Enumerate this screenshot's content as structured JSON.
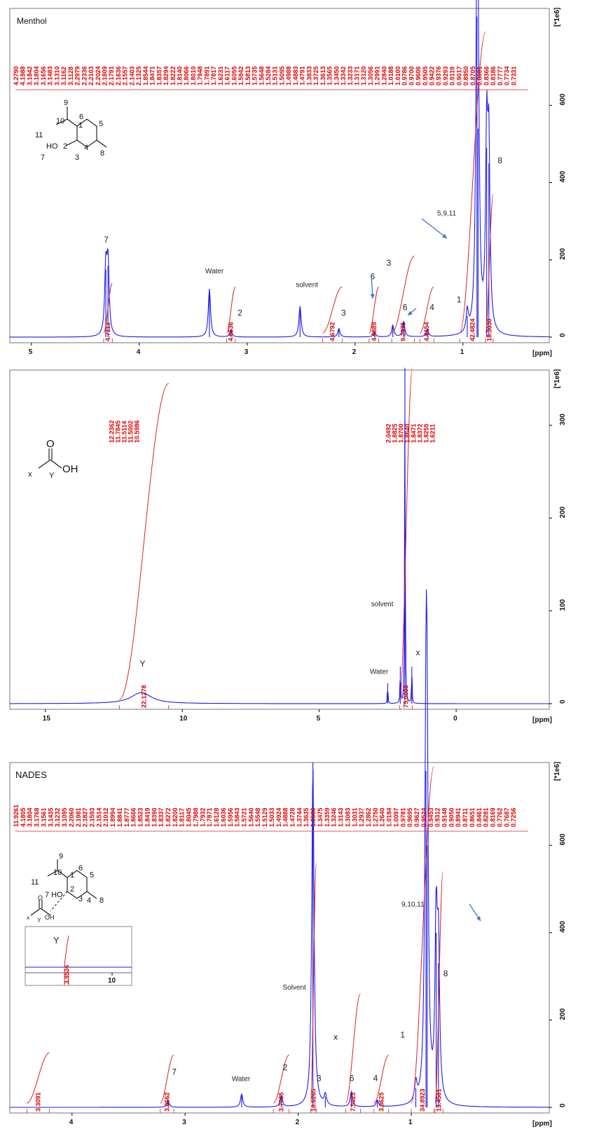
{
  "colors": {
    "spectrum": "#1c1cf0",
    "integral": "#e02020",
    "arrow": "#3a78c8"
  },
  "chart_data": [
    {
      "type": "line",
      "title": "Menthol",
      "xlabel": "[ppm]",
      "ylabel": "[*1e6]",
      "xlim": [
        5.2,
        0.2
      ],
      "ylim": [
        -30,
        840
      ],
      "x_ticks": [
        5,
        4,
        3,
        2,
        1
      ],
      "y_ticks": [
        0,
        200,
        400,
        600
      ],
      "peak_list": [
        "4.2790",
        "4.1988",
        "3.1842",
        "3.1804",
        "3.1656",
        "3.1483",
        "3.1310",
        "3.1162",
        "3.1128",
        "2.2979",
        "2.2336",
        "2.2103",
        "2.2024",
        "2.1809",
        "2.1791",
        "2.1636",
        "2.1557",
        "2.1403",
        "2.1325",
        "1.8544",
        "1.8471",
        "1.8357",
        "1.8294",
        "1.8222",
        "1.8140",
        "1.8066",
        "1.8010",
        "1.7948",
        "1.7891",
        "1.7817",
        "1.6231",
        "1.6117",
        "1.6055",
        "1.5942",
        "1.5813",
        "1.5735",
        "1.5648",
        "1.5284",
        "1.5131",
        "1.5095",
        "1.4988",
        "1.4883",
        "1.4791",
        "1.3833",
        "1.3725",
        "1.3613",
        "1.3565",
        "1.3450",
        "1.3342",
        "1.3233",
        "1.3171",
        "1.3120",
        "1.3056",
        "1.2991",
        "1.2840",
        "1.0188",
        "1.0100",
        "0.9786",
        "0.9700",
        "0.9606",
        "0.9505",
        "0.9422",
        "0.9376",
        "0.9293",
        "0.9119",
        "0.9017",
        "0.8950",
        "0.8705",
        "0.8601",
        "0.8366",
        "0.8186",
        "0.7777",
        "0.7734",
        "0.7331"
      ],
      "peaks": [
        {
          "x": 4.31,
          "y": 175
        },
        {
          "x": 4.29,
          "y": 185
        },
        {
          "x": 3.35,
          "y": 125
        },
        {
          "x": 3.15,
          "y": 18
        },
        {
          "x": 2.51,
          "y": 80
        },
        {
          "x": 2.15,
          "y": 22
        },
        {
          "x": 1.82,
          "y": 14
        },
        {
          "x": 1.65,
          "y": 30
        },
        {
          "x": 1.55,
          "y": 40
        },
        {
          "x": 1.33,
          "y": 20
        },
        {
          "x": 0.96,
          "y": 55
        },
        {
          "x": 0.87,
          "y": 830
        },
        {
          "x": 0.86,
          "y": 540
        },
        {
          "x": 0.78,
          "y": 490
        },
        {
          "x": 0.76,
          "y": 450
        }
      ],
      "integrals": [
        {
          "from": 4.33,
          "to": 4.25,
          "value": "4.7113",
          "height": 140
        },
        {
          "from": 3.19,
          "to": 3.11,
          "value": "4.6536",
          "height": 130
        },
        {
          "from": 2.3,
          "to": 2.12,
          "value": "4.6792",
          "height": 130
        },
        {
          "from": 1.87,
          "to": 1.78,
          "value": "4.6889",
          "height": 130
        },
        {
          "from": 1.66,
          "to": 1.45,
          "value": "9.2975",
          "height": 210
        },
        {
          "from": 1.4,
          "to": 1.27,
          "value": "4.8154",
          "height": 130
        },
        {
          "from": 1.03,
          "to": 0.79,
          "value": "42.4824",
          "height": 790
        },
        {
          "from": 0.79,
          "to": 0.72,
          "value": "18.3030",
          "height": 370
        }
      ],
      "annotations": [
        {
          "text": "7",
          "x": 4.29,
          "y": 245
        },
        {
          "text": "Water",
          "x": 3.35,
          "y": 165
        },
        {
          "text": "2",
          "x": 3.05,
          "y": 55
        },
        {
          "text": "solvent",
          "x": 2.51,
          "y": 130
        },
        {
          "text": "3",
          "x": 2.09,
          "y": 55
        },
        {
          "text": "6",
          "x": 1.82,
          "y": 150
        },
        {
          "text": "3",
          "x": 1.67,
          "y": 185
        },
        {
          "text": "6",
          "x": 1.52,
          "y": 70
        },
        {
          "text": "4",
          "x": 1.27,
          "y": 70
        },
        {
          "text": "1",
          "x": 1.02,
          "y": 90
        },
        {
          "text": "5,9,11",
          "x": 1.2,
          "y": 315
        },
        {
          "text": "8",
          "x": 0.64,
          "y": 450
        }
      ]
    },
    {
      "type": "line",
      "title": "",
      "xlabel": "[ppm]",
      "ylabel": "[*1e6]",
      "xlim": [
        16.3,
        -3.4
      ],
      "ylim": [
        -30,
        355
      ],
      "x_ticks": [
        15,
        10,
        5,
        0
      ],
      "y_ticks": [
        0,
        100,
        200,
        300
      ],
      "peak_list_left": [
        "12.2362",
        "11.7845",
        "11.5114",
        "11.5002",
        "10.5986"
      ],
      "peak_list_right": [
        "2.0492",
        "1.8825",
        "1.8700",
        "1.8640",
        "1.8471",
        "1.8372",
        "1.8255",
        "1.6211"
      ],
      "peaks": [
        {
          "x": 11.5,
          "y": 12,
          "broad": true
        },
        {
          "x": 2.5,
          "y": 22
        },
        {
          "x": 2.04,
          "y": 40
        },
        {
          "x": 1.87,
          "y": 362
        },
        {
          "x": 1.62,
          "y": 40
        }
      ],
      "integrals": [
        {
          "from": 12.3,
          "to": 10.5,
          "value": "22.1278",
          "height": 345
        },
        {
          "from": 2.06,
          "to": 1.6,
          "value": "75.0000",
          "height": 362
        }
      ],
      "annotations": [
        {
          "text": "Y",
          "x": 11.4,
          "y": 40
        },
        {
          "text": "Water",
          "x": 3.0,
          "y": 32
        },
        {
          "text": "solvent",
          "x": 2.95,
          "y": 105
        },
        {
          "text": "x",
          "x": 1.32,
          "y": 52
        }
      ]
    },
    {
      "type": "line",
      "title": "NADES",
      "xlabel": "[ppm]",
      "ylabel": "[*1e6]",
      "xlim": [
        4.55,
        -0.22
      ],
      "ylim": [
        -30,
        780
      ],
      "x_ticks": [
        4,
        3,
        2,
        1
      ],
      "y_ticks": [
        0,
        200,
        400,
        600
      ],
      "peak_list": [
        "11.9261",
        "4.1805",
        "3.1804",
        "3.1768",
        "3.1561",
        "3.1435",
        "3.1232",
        "3.1095",
        "2.2060",
        "2.1981",
        "2.1827",
        "2.1593",
        "2.1514",
        "2.1012",
        "1.8994",
        "1.8841",
        "1.8777",
        "1.8666",
        "1.8523",
        "1.8419",
        "1.8390",
        "1.8337",
        "1.8272",
        "1.8200",
        "1.8117",
        "1.8045",
        "1.7988",
        "1.7932",
        "1.7871",
        "1.6128",
        "1.6036",
        "1.5956",
        "1.5843",
        "1.5721",
        "1.5640",
        "1.5548",
        "1.5129",
        "1.5033",
        "1.4924",
        "1.4888",
        "1.4728",
        "1.3744",
        "1.3635",
        "1.3586",
        "1.3475",
        "1.3359",
        "1.3246",
        "1.3143",
        "1.3083",
        "1.3031",
        "1.2937",
        "1.2862",
        "1.2750",
        "1.2640",
        "1.0184",
        "1.0097",
        "0.9781",
        "0.9695",
        "0.9627",
        "0.9524",
        "0.9453",
        "0.9312",
        "0.9148",
        "0.9050",
        "0.8941",
        "0.8711",
        "0.8651",
        "0.8461",
        "0.8281",
        "0.8169",
        "0.7762",
        "0.7687",
        "0.7256"
      ],
      "peaks": [
        {
          "x": 3.15,
          "y": 15
        },
        {
          "x": 2.5,
          "y": 30
        },
        {
          "x": 2.15,
          "y": 25
        },
        {
          "x": 1.87,
          "y": 790
        },
        {
          "x": 1.76,
          "y": 25
        },
        {
          "x": 1.53,
          "y": 35
        },
        {
          "x": 1.3,
          "y": 15
        },
        {
          "x": 0.96,
          "y": 45
        },
        {
          "x": 0.87,
          "y": 770
        },
        {
          "x": 0.86,
          "y": 600
        },
        {
          "x": 0.78,
          "y": 400
        },
        {
          "x": 0.76,
          "y": 330
        }
      ],
      "integrals": [
        {
          "from": 4.4,
          "to": 4.2,
          "value": "3.3091",
          "height": 125
        },
        {
          "from": 3.22,
          "to": 3.1,
          "value": "3.8662",
          "height": 120
        },
        {
          "from": 2.22,
          "to": 2.08,
          "value": "3.7005",
          "height": 120
        },
        {
          "from": 1.89,
          "to": 1.84,
          "value": "18.6265",
          "height": 560
        },
        {
          "from": 1.58,
          "to": 1.45,
          "value": "7.5923",
          "height": 260
        },
        {
          "from": 1.33,
          "to": 1.2,
          "value": "3.8625",
          "height": 120
        },
        {
          "from": 1.0,
          "to": 0.8,
          "value": "34.8923",
          "height": 780
        },
        {
          "from": 0.79,
          "to": 0.72,
          "value": "13.4501",
          "height": 540
        }
      ],
      "annotations": [
        {
          "text": "7",
          "x": 3.08,
          "y": 75
        },
        {
          "text": "Water",
          "x": 2.55,
          "y": 60
        },
        {
          "text": "2",
          "x": 2.1,
          "y": 85
        },
        {
          "text": "Solvent",
          "x": 2.1,
          "y": 270
        },
        {
          "text": "3",
          "x": 1.8,
          "y": 60
        },
        {
          "text": "x",
          "x": 1.65,
          "y": 155
        },
        {
          "text": "6",
          "x": 1.51,
          "y": 60
        },
        {
          "text": "4",
          "x": 1.3,
          "y": 60
        },
        {
          "text": "1",
          "x": 1.06,
          "y": 160
        },
        {
          "text": "9,10,11",
          "x": 1.05,
          "y": 460
        },
        {
          "text": "8",
          "x": 0.68,
          "y": 300
        }
      ],
      "inset": {
        "label": "Y",
        "integral_value": "3.9536",
        "tick": "10"
      }
    }
  ]
}
